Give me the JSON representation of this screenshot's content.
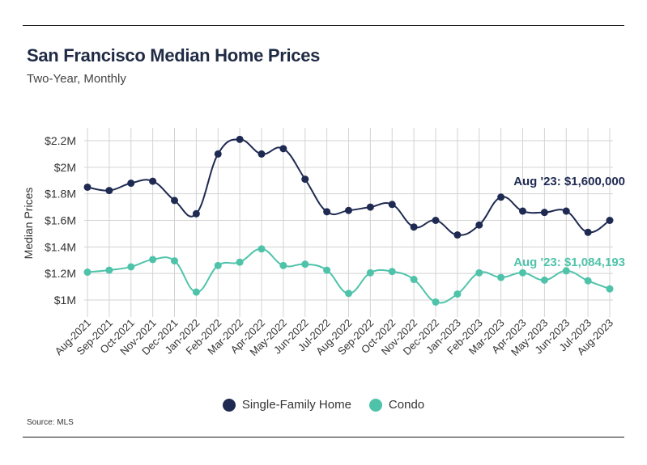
{
  "header": {
    "title": "San Francisco Median Home Prices",
    "subtitle": "Two-Year, Monthly"
  },
  "footer": {
    "source": "Source:  MLS"
  },
  "colors": {
    "sfh": "#1f2a52",
    "condo": "#4fc3aa",
    "grid": "#d3d3d3",
    "text": "#333333"
  },
  "chart_data": {
    "type": "line",
    "title": "San Francisco Median Home Prices",
    "subtitle": "Two-Year, Monthly",
    "xlabel": "",
    "ylabel": "Median Prices",
    "ylim": [
      900000,
      2250000
    ],
    "yticks": [
      1000000,
      1200000,
      1400000,
      1600000,
      1800000,
      2000000,
      2200000
    ],
    "ytick_labels": [
      "$1M",
      "$1.2M",
      "$1.4M",
      "$1.6M",
      "$1.8M",
      "$2M",
      "$2.2M"
    ],
    "grid": true,
    "legend_position": "bottom",
    "categories": [
      "Aug-2021",
      "Sep-2021",
      "Oct-2021",
      "Nov-2021",
      "Dec-2021",
      "Jan-2022",
      "Feb-2022",
      "Mar-2022",
      "Apr-2022",
      "May-2022",
      "Jun-2022",
      "Jul-2022",
      "Aug-2022",
      "Sep-2022",
      "Oct-2022",
      "Nov-2022",
      "Dec-2022",
      "Jan-2023",
      "Feb-2023",
      "Mar-2023",
      "Apr-2023",
      "May-2023",
      "Jun-2023",
      "Jul-2023",
      "Aug-2023"
    ],
    "series": [
      {
        "name": "Single-Family Home",
        "color": "#1f2a52",
        "values": [
          1850000,
          1825000,
          1880000,
          1895000,
          1750000,
          1650000,
          2100000,
          2210000,
          2100000,
          2140000,
          1910000,
          1665000,
          1675000,
          1700000,
          1720000,
          1550000,
          1600000,
          1490000,
          1565000,
          1775000,
          1670000,
          1660000,
          1670000,
          1510000,
          1600000
        ],
        "end_label": "Aug '23: $1,600,000"
      },
      {
        "name": "Condo",
        "color": "#4fc3aa",
        "values": [
          1210000,
          1225000,
          1250000,
          1305000,
          1295000,
          1060000,
          1260000,
          1285000,
          1385000,
          1260000,
          1270000,
          1225000,
          1050000,
          1205000,
          1215000,
          1155000,
          985000,
          1045000,
          1205000,
          1170000,
          1205000,
          1150000,
          1220000,
          1145000,
          1084193
        ],
        "end_label": "Aug '23: $1,084,193"
      }
    ]
  }
}
